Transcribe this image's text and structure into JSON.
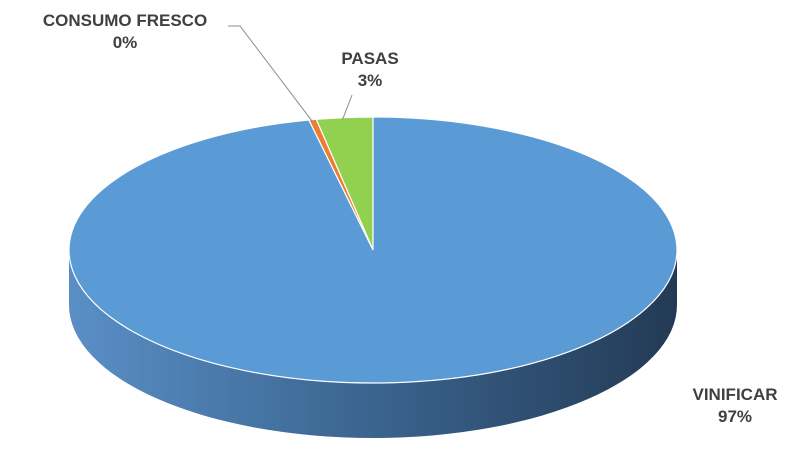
{
  "chart_data": {
    "type": "pie",
    "variant": "3d",
    "title": "",
    "start_position": "top",
    "direction": "counterclockwise",
    "slices": [
      {
        "category": "PASAS",
        "value": 3,
        "label": "3%",
        "color": "#92d050"
      },
      {
        "category": "CONSUMO FRESCO",
        "value": 0.4,
        "label": "0%",
        "color": "#ed7d31"
      },
      {
        "category": "VINIFICAR",
        "value": 97,
        "label": "97%",
        "color": "#5b9bd5"
      }
    ]
  }
}
